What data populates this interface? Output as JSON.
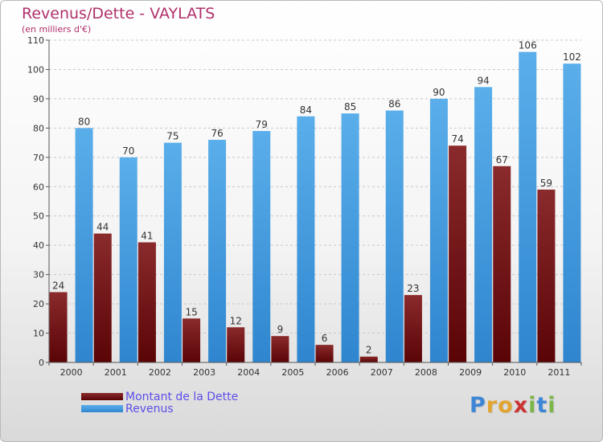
{
  "header": {
    "title": "Revenus/Dette - VAYLATS",
    "subtitle": "(en milliers d'€)"
  },
  "legend": {
    "items": [
      {
        "label": "Montant de la Dette",
        "color": "#6e0f12"
      },
      {
        "label": "Revenus",
        "color": "#4fa3e6"
      }
    ]
  },
  "logo": {
    "text": "Proxiti",
    "letters": [
      {
        "ch": "P",
        "color": "#3d86d6"
      },
      {
        "ch": "r",
        "color": "#e2a530"
      },
      {
        "ch": "o",
        "color": "#e2a530"
      },
      {
        "ch": "x",
        "color": "#cc3333"
      },
      {
        "ch": "i",
        "color": "#7ab648"
      },
      {
        "ch": "t",
        "color": "#3d86d6"
      },
      {
        "ch": "i",
        "color": "#7ab648"
      }
    ]
  },
  "chart_data": {
    "type": "bar",
    "title": "Revenus/Dette - VAYLATS",
    "subtitle": "(en milliers d'€)",
    "categories": [
      "2000",
      "2001",
      "2002",
      "2003",
      "2004",
      "2005",
      "2006",
      "2007",
      "2008",
      "2009",
      "2010",
      "2011"
    ],
    "series": [
      {
        "name": "Montant de la Dette",
        "color": "#6e0f12",
        "values": [
          24,
          44,
          41,
          15,
          12,
          9,
          6,
          2,
          23,
          74,
          67,
          59
        ]
      },
      {
        "name": "Revenus",
        "color": "#4fa3e6",
        "values": [
          80,
          70,
          75,
          76,
          79,
          84,
          85,
          86,
          90,
          94,
          106,
          102
        ]
      }
    ],
    "ylim": [
      0,
      110
    ],
    "yticks": [
      0,
      10,
      20,
      30,
      40,
      50,
      60,
      70,
      80,
      90,
      100,
      110
    ],
    "grid": true,
    "legend_position": "bottom-left"
  }
}
